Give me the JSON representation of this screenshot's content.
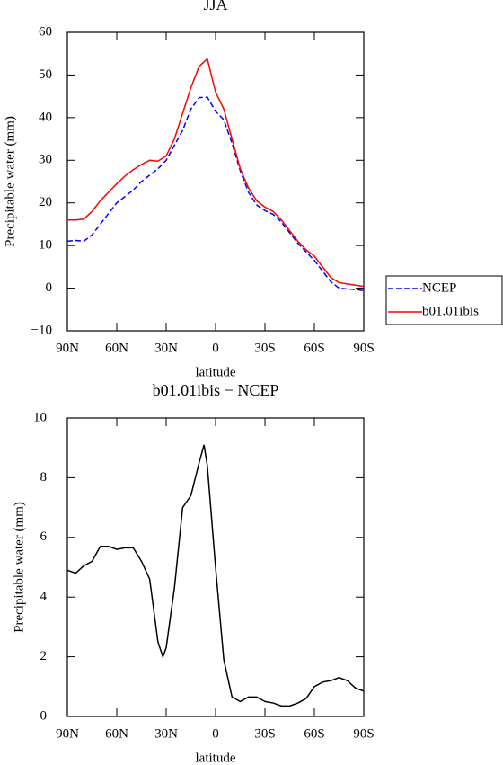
{
  "chart_data": [
    {
      "type": "line",
      "title": "JJA",
      "xlabel": "latitude",
      "ylabel": "Precipitable water (mm)",
      "x": [
        90,
        85,
        80,
        75,
        70,
        65,
        60,
        55,
        50,
        45,
        40,
        35,
        30,
        25,
        20,
        15,
        10,
        5,
        0,
        -5,
        -10,
        -15,
        -20,
        -25,
        -30,
        -35,
        -40,
        -45,
        -50,
        -55,
        -60,
        -65,
        -70,
        -75,
        -80,
        -85,
        -90
      ],
      "series": [
        {
          "name": "NCEP",
          "color": "#0000ff",
          "linestyle": "dashed",
          "values": [
            11,
            11.2,
            11,
            12.5,
            15,
            17.5,
            20,
            21.5,
            23,
            25,
            26.5,
            28,
            30,
            33.5,
            37,
            42,
            44.7,
            44.8,
            41.5,
            39.5,
            34,
            27.5,
            22.5,
            19.5,
            18.2,
            17.3,
            15.5,
            13,
            10.5,
            8.5,
            6.5,
            4,
            1.5,
            0,
            -0.2,
            -0.3,
            -0.6
          ]
        },
        {
          "name": "b01.01ibis",
          "color": "#ff0000",
          "linestyle": "solid",
          "values": [
            16,
            16,
            16.2,
            18,
            20.5,
            22.5,
            24.5,
            26.3,
            27.8,
            29,
            30,
            29.8,
            31,
            35,
            41,
            47,
            52,
            53.8,
            46,
            42,
            35,
            28,
            23.5,
            20.5,
            19,
            18,
            16,
            13.5,
            11,
            9,
            7.5,
            5,
            2.5,
            1.3,
            1,
            0.7,
            0.4
          ]
        }
      ],
      "xlim": [
        90,
        -90
      ],
      "xticks": [
        {
          "value": 90,
          "label": "90N"
        },
        {
          "value": 60,
          "label": "60N"
        },
        {
          "value": 30,
          "label": "30N"
        },
        0,
        {
          "value": -30,
          "label": "30S"
        },
        {
          "value": -60,
          "label": "60S"
        },
        {
          "value": -90,
          "label": "90S"
        }
      ],
      "ylim": [
        -10,
        60
      ],
      "yticks": [
        {
          "value": -10,
          "label": "−10"
        },
        0,
        10,
        20,
        30,
        40,
        50,
        60
      ],
      "legend": "right"
    },
    {
      "type": "line",
      "title": "b01.01ibis − NCEP",
      "xlabel": "latitude",
      "ylabel": "Precipitable water (mm)",
      "x": [
        90,
        85,
        80,
        75,
        70,
        65,
        60,
        55,
        50,
        45,
        40,
        35,
        32,
        30,
        25,
        20,
        15,
        10,
        7,
        5,
        0,
        -5,
        -10,
        -15,
        -20,
        -25,
        -30,
        -35,
        -40,
        -45,
        -50,
        -55,
        -60,
        -65,
        -70,
        -75,
        -80,
        -85,
        -90
      ],
      "series": [
        {
          "color": "#000000",
          "linestyle": "solid",
          "values": [
            4.9,
            4.8,
            5.05,
            5.2,
            5.7,
            5.7,
            5.6,
            5.65,
            5.65,
            5.2,
            4.6,
            2.5,
            2.0,
            2.3,
            4.3,
            7.0,
            7.4,
            8.5,
            9.1,
            8.4,
            5.0,
            1.9,
            0.65,
            0.5,
            0.65,
            0.65,
            0.5,
            0.45,
            0.35,
            0.35,
            0.45,
            0.6,
            1.0,
            1.15,
            1.2,
            1.3,
            1.2,
            0.95,
            0.85
          ]
        }
      ],
      "xlim": [
        90,
        -90
      ],
      "xticks": [
        {
          "value": 90,
          "label": "90N"
        },
        {
          "value": 60,
          "label": "60N"
        },
        {
          "value": 30,
          "label": "30N"
        },
        0,
        {
          "value": -30,
          "label": "30S"
        },
        {
          "value": -60,
          "label": "60S"
        },
        {
          "value": -90,
          "label": "90S"
        }
      ],
      "ylim": [
        0,
        10
      ],
      "yticks": [
        0,
        2,
        4,
        6,
        8,
        10
      ]
    }
  ]
}
